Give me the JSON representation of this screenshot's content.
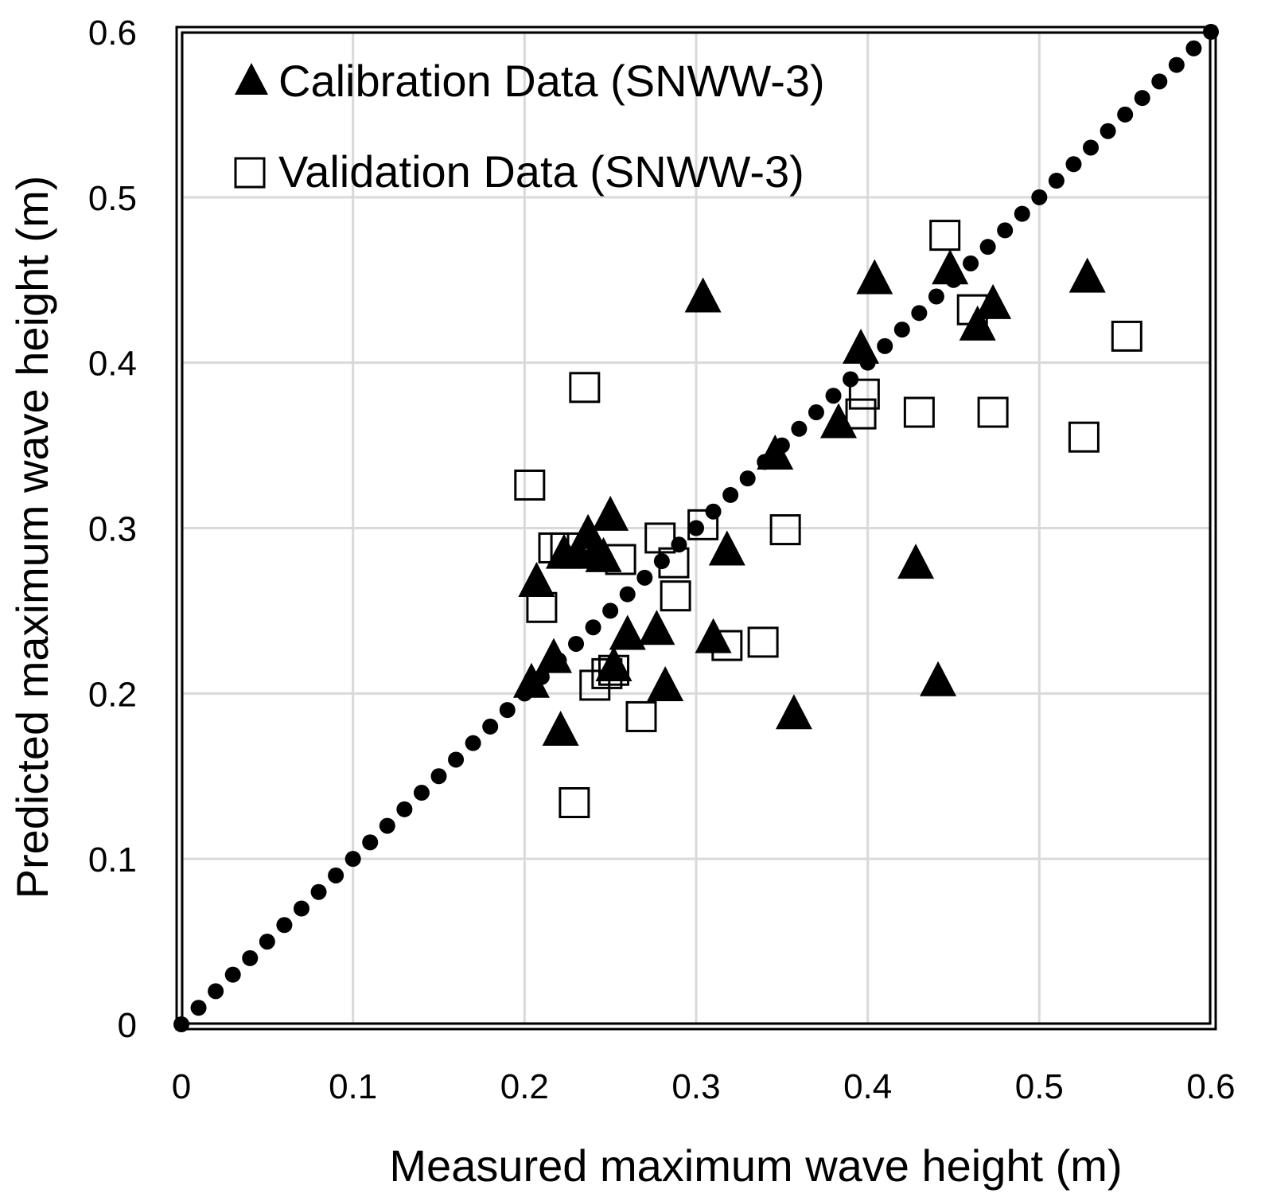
{
  "chart_data": {
    "type": "scatter",
    "title": "",
    "xlabel": "Measured maximum wave height (m)",
    "ylabel": "Predicted maximum wave height (m)",
    "xlim": [
      0,
      0.6
    ],
    "ylim": [
      0,
      0.6
    ],
    "grid": true,
    "legend_position": "top-left",
    "x_tick_labels": [
      "0",
      "0.1",
      "0.2",
      "0.3",
      "0.4",
      "0.5",
      "0.6"
    ],
    "y_tick_labels": [
      "0",
      "0.1",
      "0.2",
      "0.3",
      "0.4",
      "0.5",
      "0.6"
    ],
    "series": [
      {
        "name": "Calibration Data (SNWW-3)",
        "marker": "filled-triangle",
        "color": "#000000",
        "points": [
          [
            0.204,
            0.207
          ],
          [
            0.207,
            0.268
          ],
          [
            0.217,
            0.222
          ],
          [
            0.221,
            0.178
          ],
          [
            0.223,
            0.285
          ],
          [
            0.231,
            0.285
          ],
          [
            0.237,
            0.297
          ],
          [
            0.242,
            0.287
          ],
          [
            0.246,
            0.283
          ],
          [
            0.25,
            0.308
          ],
          [
            0.252,
            0.217
          ],
          [
            0.26,
            0.236
          ],
          [
            0.277,
            0.239
          ],
          [
            0.282,
            0.205
          ],
          [
            0.304,
            0.44
          ],
          [
            0.31,
            0.234
          ],
          [
            0.318,
            0.287
          ],
          [
            0.346,
            0.345
          ],
          [
            0.357,
            0.188
          ],
          [
            0.383,
            0.364
          ],
          [
            0.396,
            0.409
          ],
          [
            0.404,
            0.451
          ],
          [
            0.428,
            0.279
          ],
          [
            0.441,
            0.208
          ],
          [
            0.448,
            0.457
          ],
          [
            0.464,
            0.423
          ],
          [
            0.473,
            0.436
          ],
          [
            0.528,
            0.452
          ]
        ]
      },
      {
        "name": "Validation Data (SNWW-3)",
        "marker": "hollow-square",
        "color": "#000000",
        "points": [
          [
            0.203,
            0.326
          ],
          [
            0.21,
            0.252
          ],
          [
            0.217,
            0.288
          ],
          [
            0.224,
            0.288
          ],
          [
            0.229,
            0.134
          ],
          [
            0.235,
            0.385
          ],
          [
            0.241,
            0.205
          ],
          [
            0.248,
            0.212
          ],
          [
            0.252,
            0.214
          ],
          [
            0.256,
            0.281
          ],
          [
            0.268,
            0.186
          ],
          [
            0.279,
            0.294
          ],
          [
            0.287,
            0.279
          ],
          [
            0.288,
            0.259
          ],
          [
            0.304,
            0.302
          ],
          [
            0.318,
            0.229
          ],
          [
            0.339,
            0.231
          ],
          [
            0.352,
            0.299
          ],
          [
            0.396,
            0.369
          ],
          [
            0.398,
            0.381
          ],
          [
            0.43,
            0.37
          ],
          [
            0.445,
            0.477
          ],
          [
            0.461,
            0.432
          ],
          [
            0.473,
            0.37
          ],
          [
            0.526,
            0.355
          ],
          [
            0.551,
            0.416
          ]
        ]
      },
      {
        "name": "1:1 line",
        "marker": "dotted-line",
        "color": "#000000",
        "points": [
          [
            0,
            0
          ],
          [
            0.6,
            0.6
          ]
        ]
      }
    ]
  }
}
